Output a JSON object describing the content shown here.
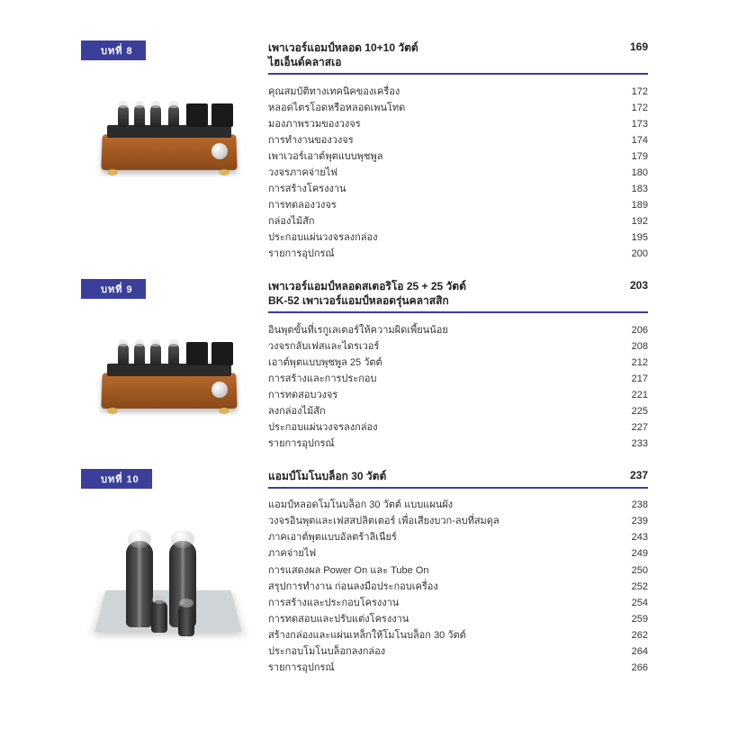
{
  "colors": {
    "accent": "#3b3f9b",
    "text": "#333333",
    "bg": "#ffffff"
  },
  "chapters": [
    {
      "tab": "บทที่  8",
      "title": "เพาเวอร์แอมป์หลอด 10+10 วัตต์\nไฮเอ็นด์คลาสเอ",
      "page": "169",
      "image": "amp",
      "entries": [
        {
          "t": "คุณสมบัติทางเทคนิคของเครื่อง",
          "p": "172"
        },
        {
          "t": "หลอดไตรโอดหรือหลอดเพนโทด",
          "p": "172"
        },
        {
          "t": "มองภาพรวมของวงจร",
          "p": "173"
        },
        {
          "t": "การทำงานของวงจร",
          "p": "174"
        },
        {
          "t": "เพาเวอร์เอาต์พุตแบบพุชพูล",
          "p": "179"
        },
        {
          "t": "วงจรภาคจ่ายไฟ",
          "p": "180"
        },
        {
          "t": "การสร้างโครงงาน",
          "p": "183"
        },
        {
          "t": "การทดลองวงจร",
          "p": "189"
        },
        {
          "t": "กล่องไม้สัก",
          "p": "192"
        },
        {
          "t": "ประกอบแผ่นวงจรลงกล่อง",
          "p": "195"
        },
        {
          "t": "รายการอุปกรณ์",
          "p": "200"
        }
      ]
    },
    {
      "tab": "บทที่  9",
      "title": "เพาเวอร์แอมป์หลอดสเตอริโอ 25 + 25 วัตต์\nBK-52  เพาเวอร์แอมป์หลอดรุ่นคลาสสิก",
      "page": "203",
      "image": "amp",
      "entries": [
        {
          "t": "อินพุตขั้นที่เรกูเลเตอร์ให้ความผิดเพี้ยนน้อย",
          "p": "206"
        },
        {
          "t": "วงจรกลับเฟสและไดรเวอร์",
          "p": "208"
        },
        {
          "t": "เอาต์พุตแบบพุชพูล 25 วัตต์",
          "p": "212"
        },
        {
          "t": "การสร้างและการประกอบ",
          "p": "217"
        },
        {
          "t": "การทดสอบวงจร",
          "p": "221"
        },
        {
          "t": "ลงกล่องไม้สัก",
          "p": "225"
        },
        {
          "t": "ประกอบแผ่นวงจรลงกล่อง",
          "p": "227"
        },
        {
          "t": "รายการอุปกรณ์",
          "p": "233"
        }
      ]
    },
    {
      "tab": "บทที่  10",
      "title": "แอมป์โมโนบล็อก 30 วัตต์",
      "page": "237",
      "image": "tubes",
      "entries": [
        {
          "t": "แอมป์หลอดโมโนบล็อก 30 วัตต์ แบบแผนผัง",
          "p": "238"
        },
        {
          "t": "วงจรอินพุตและเฟสสปลิตเตอร์ เพื่อเสียงบวก-ลบที่สมดุล",
          "p": "239"
        },
        {
          "t": "ภาคเอาต์พุตแบบอัลตร้าลิเนียร์",
          "p": "243"
        },
        {
          "t": "ภาคจ่ายไฟ",
          "p": "249"
        },
        {
          "t": "การแสดงผล Power On และ Tube On",
          "p": "250"
        },
        {
          "t": "สรุปการทำงาน ก่อนลงมือประกอบเครื่อง",
          "p": "252"
        },
        {
          "t": "การสร้างและประกอบโครงงาน",
          "p": "254"
        },
        {
          "t": "การทดสอบและปรับแต่งโครงงาน",
          "p": "259"
        },
        {
          "t": "สร้างกล่องและแผ่นเหล็กให้โมโนบล็อก 30 วัตต์",
          "p": "262"
        },
        {
          "t": "ประกอบโมโนบล็อกลงกล่อง",
          "p": "264"
        },
        {
          "t": "รายการอุปกรณ์",
          "p": "266"
        }
      ]
    }
  ]
}
